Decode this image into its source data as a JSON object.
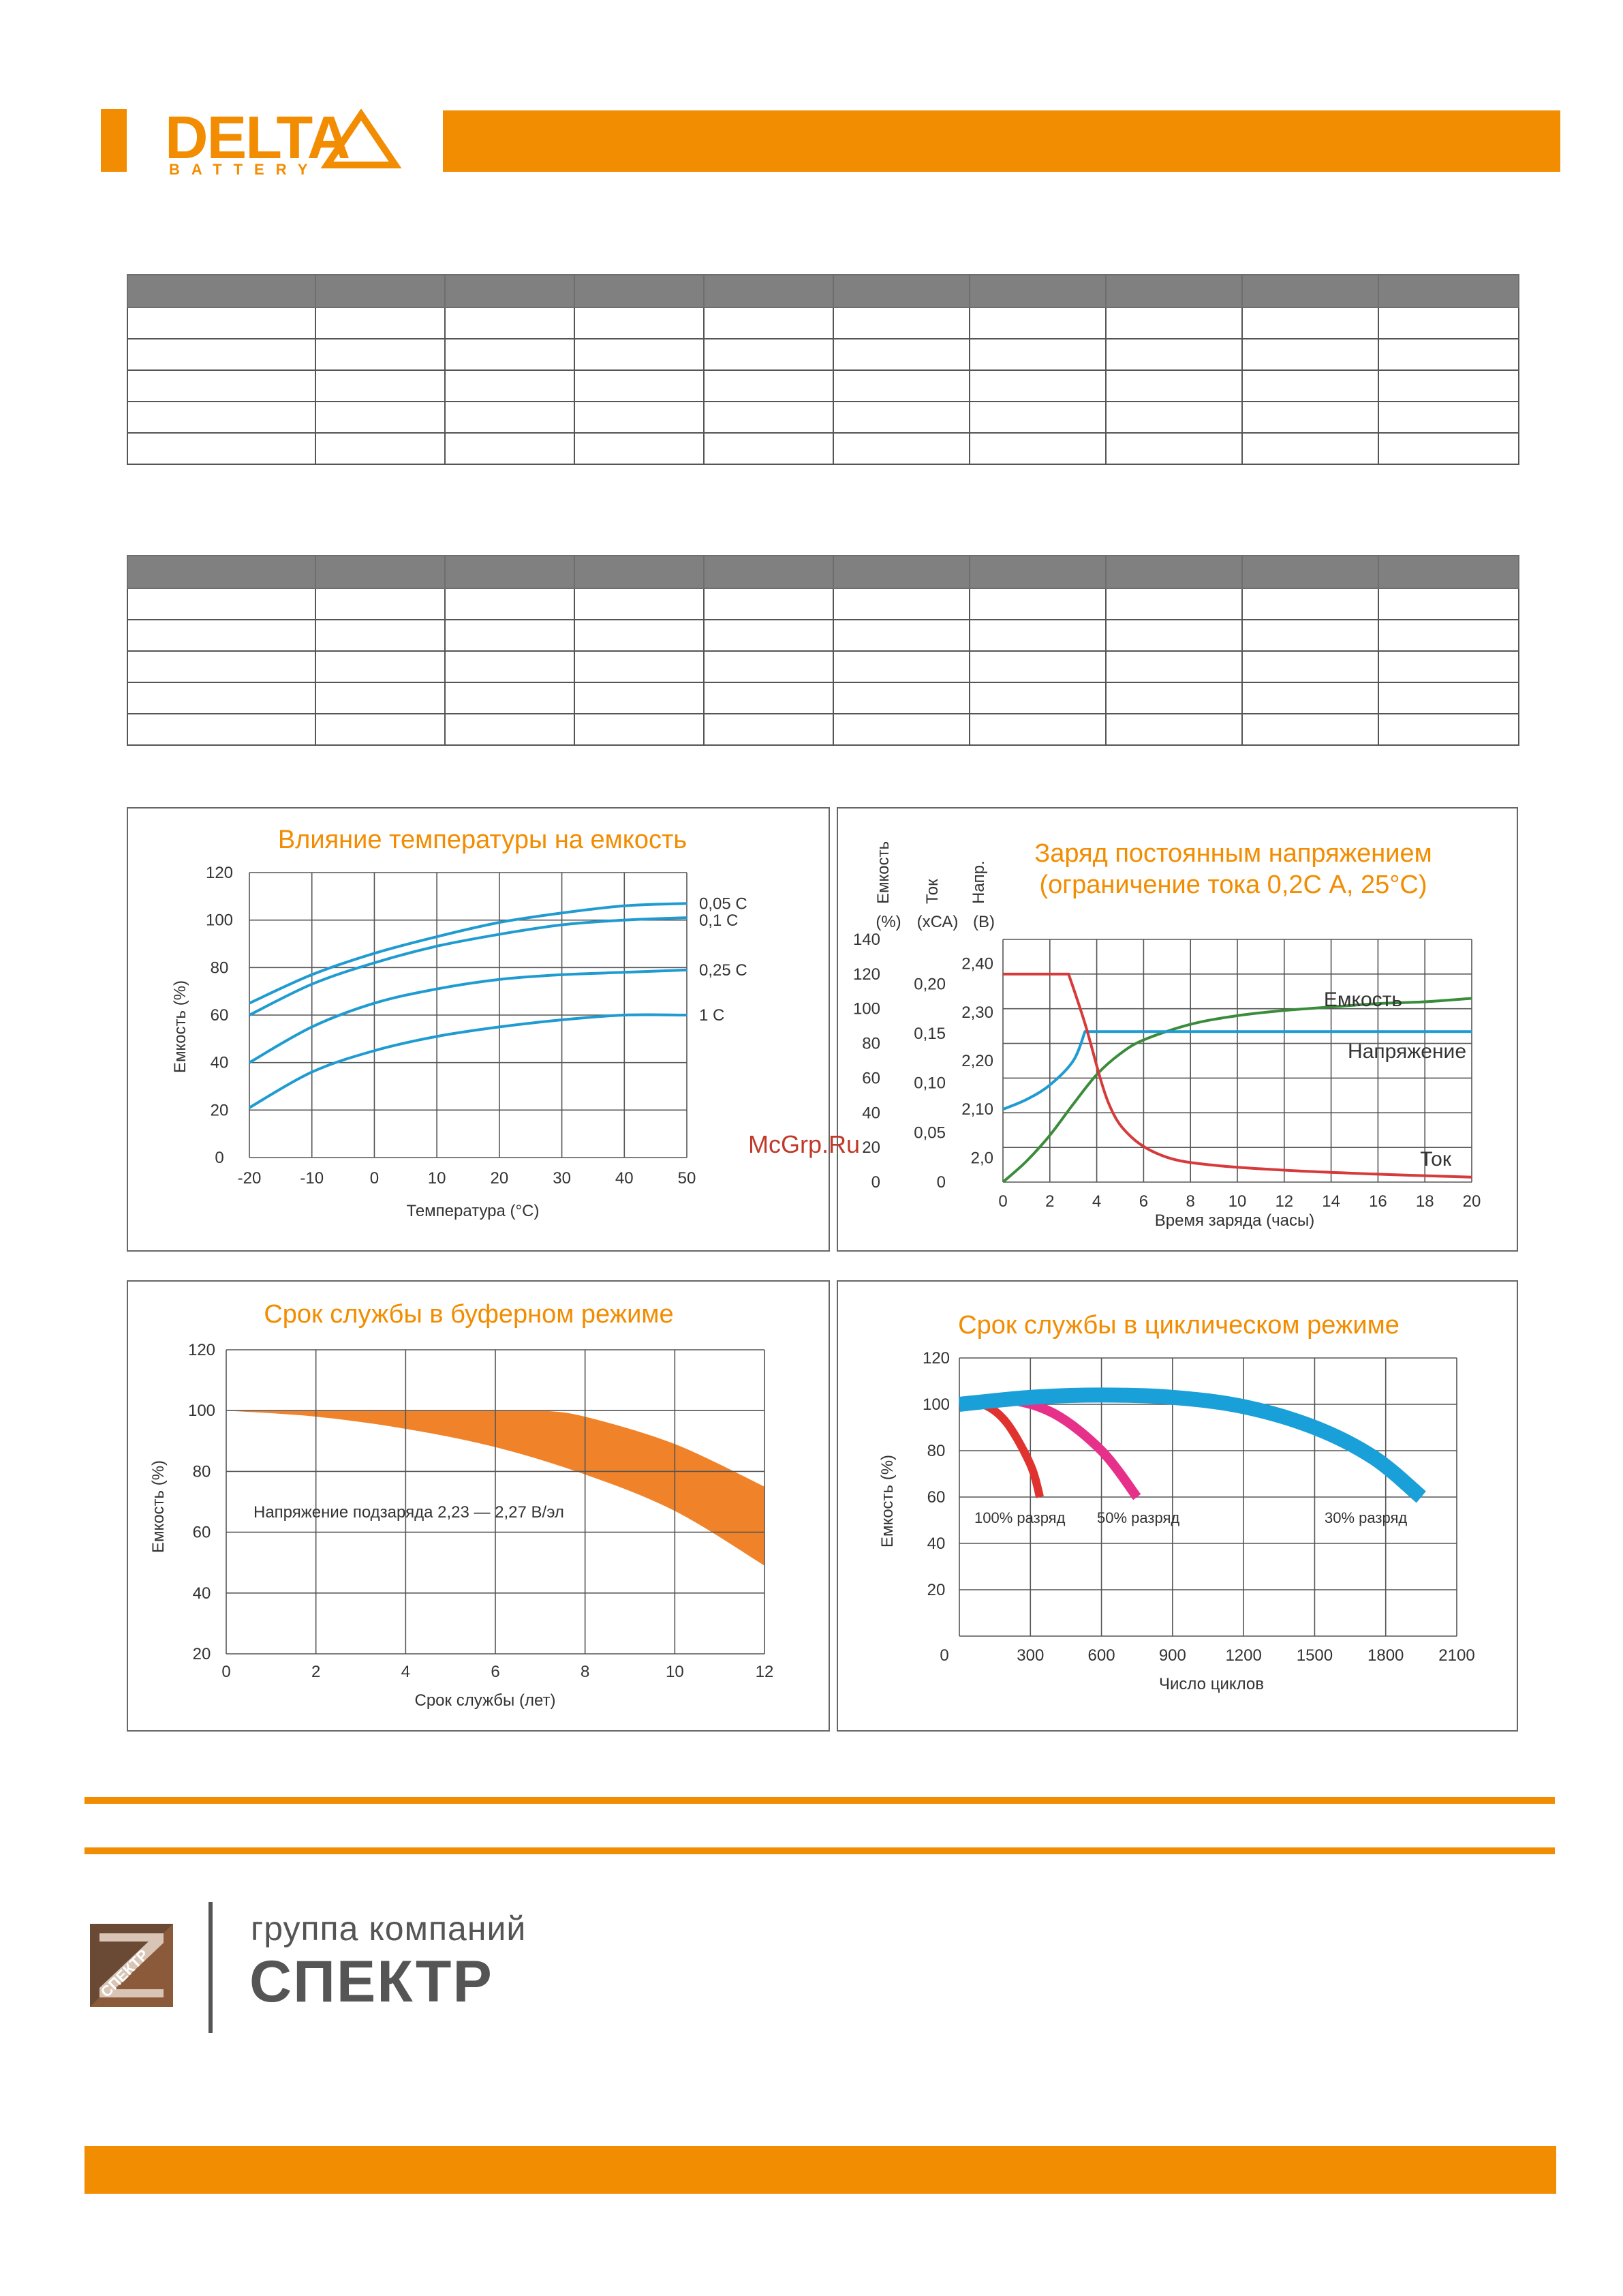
{
  "header": {
    "brand": "DELTA",
    "brand_sub": "BATTERY",
    "accent_color": "#f28c00"
  },
  "tables": {
    "table1": {
      "columns": 10,
      "rows": 5
    },
    "table2": {
      "columns": 10,
      "rows": 5
    }
  },
  "watermark": "McGrp.Ru",
  "chart_data": [
    {
      "type": "line",
      "title": "Влияние температуры на емкость",
      "xlabel": "Температура (°С)",
      "ylabel": "Емкость (%)",
      "x_ticks": [
        "-20",
        "-10",
        "0",
        "10",
        "20",
        "30",
        "40",
        "50"
      ],
      "y_ticks": [
        "0",
        "20",
        "40",
        "60",
        "80",
        "100",
        "120"
      ],
      "xlim": [
        -20,
        50
      ],
      "ylim": [
        0,
        120
      ],
      "series": [
        {
          "name": "0,05 С",
          "color": "#1f9bd1",
          "x": [
            -20,
            -10,
            0,
            10,
            20,
            30,
            40,
            50
          ],
          "y": [
            65,
            77,
            86,
            93,
            99,
            103,
            106,
            107
          ]
        },
        {
          "name": "0,1 С",
          "color": "#1f9bd1",
          "x": [
            -20,
            -10,
            0,
            10,
            20,
            30,
            40,
            50
          ],
          "y": [
            60,
            73,
            82,
            89,
            94,
            98,
            100,
            101
          ]
        },
        {
          "name": "0,25 С",
          "color": "#1f9bd1",
          "x": [
            -20,
            -10,
            0,
            10,
            20,
            30,
            40,
            50
          ],
          "y": [
            40,
            55,
            65,
            71,
            75,
            77,
            78,
            79
          ]
        },
        {
          "name": "1 С",
          "color": "#1f9bd1",
          "x": [
            -20,
            -10,
            0,
            10,
            20,
            30,
            40,
            50
          ],
          "y": [
            21,
            36,
            45,
            51,
            55,
            58,
            60,
            60
          ]
        }
      ]
    },
    {
      "type": "line",
      "title_line1": "Заряд постоянным напряжением",
      "title_line2": "(ограничение тока 0,2С А, 25°С)",
      "xlabel": "Время заряда (часы)",
      "axis_headers": [
        {
          "rot": "Емкость",
          "unit": "(%)"
        },
        {
          "rot": "Ток",
          "unit": "(хСА)"
        },
        {
          "rot": "Напр.",
          "unit": "(В)"
        }
      ],
      "x_ticks": [
        "0",
        "2",
        "4",
        "6",
        "8",
        "10",
        "12",
        "14",
        "16",
        "18",
        "20"
      ],
      "y_capacity_ticks": [
        "0",
        "20",
        "40",
        "60",
        "80",
        "100",
        "120",
        "140"
      ],
      "y_current_ticks": [
        "0",
        "0,05",
        "0,10",
        "0,15",
        "0,20"
      ],
      "y_voltage_ticks": [
        "2,0",
        "2,10",
        "2,20",
        "2,30",
        "2,40"
      ],
      "series": [
        {
          "name": "Емкость",
          "color": "#3a8c3a",
          "x": [
            0,
            1,
            2,
            3,
            4,
            5,
            6,
            8,
            10,
            12,
            14,
            16,
            18,
            20
          ],
          "y": [
            0,
            12,
            27,
            45,
            62,
            74,
            82,
            91,
            96,
            99,
            101,
            103,
            104,
            106
          ]
        },
        {
          "name": "Напряжение",
          "color": "#1f9bd1",
          "x": [
            0,
            1,
            2,
            3,
            3.5,
            4,
            20
          ],
          "y": [
            2.1,
            2.12,
            2.15,
            2.2,
            2.26,
            2.26,
            2.26
          ]
        },
        {
          "name": "Ток",
          "color": "#d63a3a",
          "x": [
            0,
            2.8,
            3.5,
            4.5,
            5.5,
            7,
            9,
            12,
            16,
            20
          ],
          "y": [
            0.21,
            0.21,
            0.16,
            0.08,
            0.045,
            0.025,
            0.017,
            0.012,
            0.008,
            0.005
          ]
        }
      ]
    },
    {
      "type": "area",
      "title": "Срок службы в буферном режиме",
      "xlabel": "Срок службы (лет)",
      "ylabel": "Емкость (%)",
      "annotation": "Напряжение подзаряда 2,23 — 2,27 В/эл",
      "x_ticks": [
        "0",
        "2",
        "4",
        "6",
        "8",
        "10",
        "12"
      ],
      "y_ticks": [
        "20",
        "40",
        "60",
        "80",
        "100",
        "120"
      ],
      "xlim": [
        0,
        12
      ],
      "ylim": [
        20,
        120
      ],
      "color": "#f0832a",
      "upper": {
        "x": [
          0,
          2,
          4,
          6,
          7,
          8,
          10,
          12
        ],
        "y": [
          100,
          100,
          100,
          100,
          100,
          98,
          89,
          75
        ]
      },
      "lower": {
        "x": [
          0,
          2,
          4,
          6,
          8,
          10,
          12
        ],
        "y": [
          100,
          98,
          94,
          88,
          79,
          67,
          49
        ]
      }
    },
    {
      "type": "area",
      "title": "Срок службы в циклическом режиме",
      "xlabel": "Число циклов",
      "ylabel": "Емкость (%)",
      "x_ticks": [
        "0",
        "300",
        "600",
        "900",
        "1200",
        "1500",
        "1800",
        "2100"
      ],
      "y_ticks": [
        "20",
        "40",
        "60",
        "80",
        "100",
        "120"
      ],
      "xlim": [
        0,
        2100
      ],
      "ylim": [
        0,
        120
      ],
      "series": [
        {
          "name": "100% разряд",
          "color": "#e0322f",
          "x": [
            0,
            100,
            200,
            300,
            340
          ],
          "y": [
            100,
            100,
            92,
            74,
            60
          ]
        },
        {
          "name": "50% разряд",
          "color": "#e6308a",
          "x": [
            0,
            200,
            400,
            600,
            750
          ],
          "y": [
            100,
            102,
            96,
            80,
            60
          ]
        },
        {
          "name": "30% разряд",
          "color": "#1aa0d8",
          "x": [
            0,
            300,
            600,
            900,
            1200,
            1500,
            1750,
            1950
          ],
          "y": [
            100,
            103,
            104,
            103,
            99,
            90,
            77,
            60
          ]
        }
      ]
    }
  ],
  "footer": {
    "group_label": "группа компаний",
    "company": "СПЕКТР",
    "emblem_text": "СПЕКТР"
  }
}
